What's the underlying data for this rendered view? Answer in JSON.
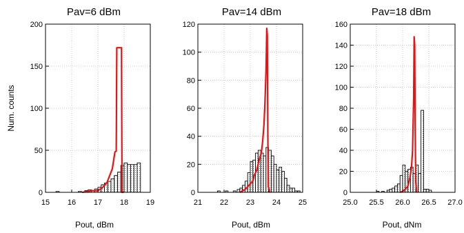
{
  "chart_data": [
    {
      "type": "bar",
      "title": "Pav=6 dBm",
      "xlabel": "Pout, dBm",
      "ylabel": "Num. counts",
      "xlim": [
        15,
        19
      ],
      "ylim": [
        0,
        200
      ],
      "xticks": [
        "15",
        "16",
        "17",
        "18",
        "19"
      ],
      "yticks": [
        "0",
        "50",
        "100",
        "150",
        "200"
      ],
      "grid": true,
      "series": [
        {
          "kind": "histogram",
          "color": "#000000",
          "bin_width": 0.125,
          "bins": [
            [
              15.4,
              1
            ],
            [
              16.25,
              1
            ],
            [
              16.5,
              2
            ],
            [
              16.625,
              3
            ],
            [
              16.75,
              2
            ],
            [
              16.875,
              4
            ],
            [
              17.0,
              6
            ],
            [
              17.125,
              9
            ],
            [
              17.25,
              11
            ],
            [
              17.375,
              13
            ],
            [
              17.5,
              16
            ],
            [
              17.625,
              20
            ],
            [
              17.75,
              24
            ],
            [
              17.875,
              32
            ],
            [
              18.0,
              35
            ],
            [
              18.125,
              33
            ],
            [
              18.25,
              33
            ],
            [
              18.375,
              33
            ],
            [
              18.5,
              35
            ]
          ]
        },
        {
          "kind": "line",
          "color": "#ee1111",
          "points": [
            [
              16.4,
              0
            ],
            [
              16.6,
              1
            ],
            [
              16.8,
              2
            ],
            [
              17.0,
              2
            ],
            [
              17.1,
              4
            ],
            [
              17.15,
              5
            ],
            [
              17.25,
              8
            ],
            [
              17.35,
              12
            ],
            [
              17.45,
              20
            ],
            [
              17.55,
              28
            ],
            [
              17.65,
              48
            ],
            [
              17.7,
              49
            ],
            [
              17.72,
              172
            ],
            [
              17.9,
              172
            ],
            [
              17.92,
              0
            ],
            [
              17.98,
              0
            ]
          ]
        }
      ]
    },
    {
      "type": "bar",
      "title": "Pav=14 dBm",
      "xlabel": "Pout, dBm",
      "ylabel": "",
      "xlim": [
        21,
        25
      ],
      "ylim": [
        0,
        120
      ],
      "xticks": [
        "21",
        "22",
        "23",
        "24",
        "25"
      ],
      "yticks": [
        "0",
        "20",
        "40",
        "60",
        "80",
        "100",
        "120"
      ],
      "grid": true,
      "series": [
        {
          "kind": "histogram",
          "color": "#000000",
          "bin_width": 0.1,
          "bins": [
            [
              21.75,
              1
            ],
            [
              22.05,
              1
            ],
            [
              22.35,
              1
            ],
            [
              22.5,
              2
            ],
            [
              22.6,
              3
            ],
            [
              22.7,
              5
            ],
            [
              22.8,
              8
            ],
            [
              22.9,
              14
            ],
            [
              23.0,
              22
            ],
            [
              23.1,
              23
            ],
            [
              23.2,
              28
            ],
            [
              23.3,
              30
            ],
            [
              23.4,
              28
            ],
            [
              23.5,
              26
            ],
            [
              23.6,
              32
            ],
            [
              23.7,
              30
            ],
            [
              23.8,
              26
            ],
            [
              23.9,
              20
            ],
            [
              24.0,
              16
            ],
            [
              24.1,
              18
            ],
            [
              24.2,
              15
            ],
            [
              24.3,
              10
            ],
            [
              24.4,
              5
            ],
            [
              24.5,
              3
            ],
            [
              24.6,
              3
            ],
            [
              24.7,
              1
            ],
            [
              24.8,
              1
            ]
          ]
        },
        {
          "kind": "line",
          "color": "#ee1111",
          "points": [
            [
              22.6,
              0
            ],
            [
              22.7,
              1
            ],
            [
              22.8,
              2
            ],
            [
              22.9,
              4
            ],
            [
              23.0,
              6
            ],
            [
              23.1,
              8
            ],
            [
              23.15,
              12
            ],
            [
              23.25,
              16
            ],
            [
              23.3,
              20
            ],
            [
              23.35,
              24
            ],
            [
              23.42,
              28
            ],
            [
              23.47,
              36
            ],
            [
              23.52,
              48
            ],
            [
              23.56,
              64
            ],
            [
              23.6,
              86
            ],
            [
              23.63,
              117
            ],
            [
              23.65,
              112
            ],
            [
              23.67,
              40
            ],
            [
              23.69,
              4
            ],
            [
              23.75,
              0
            ]
          ]
        }
      ]
    },
    {
      "type": "bar",
      "title": "Pav=18 dBm",
      "xlabel": "Pout, dNm",
      "ylabel": "",
      "xlim": [
        25.0,
        27.0
      ],
      "ylim": [
        0,
        160
      ],
      "xticks": [
        "25.0",
        "25.5",
        "26.0",
        "26.5",
        "27.0"
      ],
      "yticks": [
        "0",
        "20",
        "40",
        "60",
        "80",
        "100",
        "120",
        "140",
        "160"
      ],
      "grid": true,
      "series": [
        {
          "kind": "histogram",
          "color": "#000000",
          "bin_width": 0.05,
          "bins": [
            [
              25.5,
              1
            ],
            [
              25.6,
              1
            ],
            [
              25.7,
              2
            ],
            [
              25.75,
              3
            ],
            [
              25.8,
              4
            ],
            [
              25.85,
              6
            ],
            [
              25.9,
              8
            ],
            [
              25.95,
              16
            ],
            [
              26.0,
              26
            ],
            [
              26.05,
              20
            ],
            [
              26.1,
              22
            ],
            [
              26.15,
              24
            ],
            [
              26.2,
              18
            ],
            [
              26.25,
              26
            ],
            [
              26.3,
              18
            ],
            [
              26.35,
              78
            ],
            [
              26.4,
              3
            ],
            [
              26.45,
              3
            ],
            [
              26.5,
              2
            ]
          ]
        },
        {
          "kind": "line",
          "color": "#ee1111",
          "points": [
            [
              25.95,
              0
            ],
            [
              26.0,
              1
            ],
            [
              26.05,
              3
            ],
            [
              26.1,
              6
            ],
            [
              26.14,
              14
            ],
            [
              26.17,
              24
            ],
            [
              26.19,
              40
            ],
            [
              26.21,
              90
            ],
            [
              26.22,
              148
            ],
            [
              26.23,
              140
            ],
            [
              26.24,
              60
            ],
            [
              26.25,
              10
            ],
            [
              26.27,
              0
            ]
          ]
        }
      ]
    }
  ]
}
